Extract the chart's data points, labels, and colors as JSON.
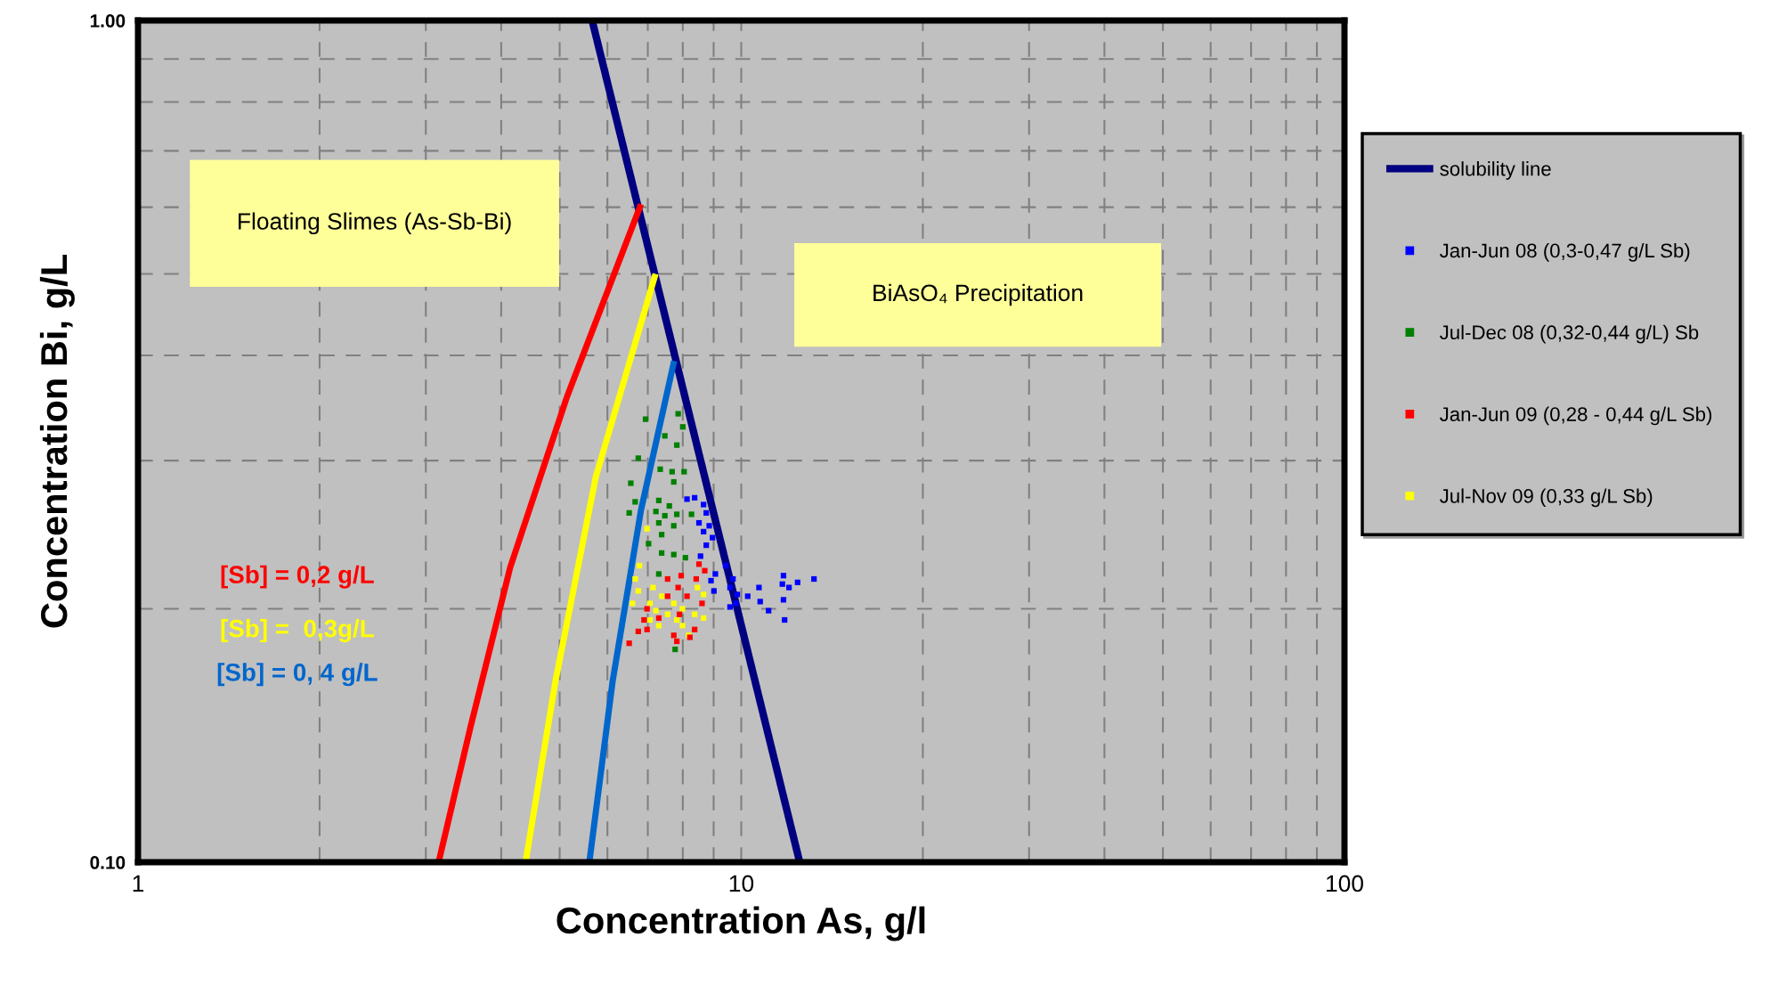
{
  "chart_data": {
    "type": "scatter",
    "xlabel": "Concentration As, g/l",
    "ylabel": "Concentration Bi, g/L",
    "log": "xy",
    "grid": true,
    "legend": "right",
    "marker": "square",
    "xlim": [
      1,
      100
    ],
    "ylim": [
      0.1,
      1.0
    ],
    "xticks": [
      1,
      {
        "value": 2,
        "label": null
      },
      {
        "value": 3,
        "label": null
      },
      {
        "value": 4,
        "label": null
      },
      {
        "value": 5,
        "label": null
      },
      {
        "value": 6,
        "label": null
      },
      {
        "value": 7,
        "label": null
      },
      {
        "value": 8,
        "label": null
      },
      {
        "value": 9,
        "label": null
      },
      10,
      {
        "value": 20,
        "label": null
      },
      {
        "value": 30,
        "label": null
      },
      {
        "value": 40,
        "label": null
      },
      {
        "value": 50,
        "label": null
      },
      {
        "value": 60,
        "label": null
      },
      {
        "value": 70,
        "label": null
      },
      {
        "value": 80,
        "label": null
      },
      {
        "value": 90,
        "label": null
      },
      100
    ],
    "yticks": [
      {
        "value": 0.1,
        "label": "0.10"
      },
      {
        "value": 0.2,
        "label": null
      },
      {
        "value": 0.3,
        "label": null
      },
      {
        "value": 0.4,
        "label": null
      },
      {
        "value": 0.5,
        "label": null
      },
      {
        "value": 0.6,
        "label": null
      },
      {
        "value": 0.7,
        "label": null
      },
      {
        "value": 0.8,
        "label": null
      },
      {
        "value": 0.9,
        "label": null
      },
      {
        "value": 1.0,
        "label": "1.00"
      }
    ],
    "annotations": [
      "Floating Slimes (As-Sb-Bi)",
      "BiAsO₄ Precipitation"
    ],
    "series": [
      {
        "name": "solubility line",
        "type": "line",
        "marker": "none",
        "color": "#000080",
        "x": [
          5.66,
          12.5
        ],
        "values": [
          1.0,
          0.1
        ]
      },
      {
        "name": "Jan-Jun 08 (0,3-0,47 g/L Sb)",
        "color": "#0000ff",
        "x": [
          8.13,
          8.37,
          8.66,
          8.75,
          8.51,
          8.85,
          8.66,
          8.96,
          8.75,
          8.56,
          9.42,
          9.06,
          9.69,
          8.91,
          9.01,
          9.58,
          9.85,
          10.25,
          10.7,
          10.75,
          11.1,
          11.75,
          11.7,
          12.0,
          12.4,
          13.2,
          11.75,
          11.8,
          9.58,
          9.8
        ],
        "values": [
          0.27,
          0.271,
          0.266,
          0.26,
          0.253,
          0.251,
          0.247,
          0.243,
          0.238,
          0.231,
          0.225,
          0.22,
          0.217,
          0.216,
          0.21,
          0.212,
          0.208,
          0.207,
          0.212,
          0.204,
          0.199,
          0.219,
          0.214,
          0.212,
          0.215,
          0.217,
          0.205,
          0.194,
          0.201,
          0.203
        ]
      },
      {
        "name": "Jul-Dec 08 (0,32-0,44 g/L) Sb",
        "color": "#008000",
        "x": [
          6.94,
          7.86,
          8.0,
          7.47,
          7.82,
          6.75,
          7.34,
          7.68,
          8.04,
          6.56,
          7.73,
          6.67,
          7.3,
          7.6,
          6.52,
          7.22,
          7.47,
          7.82,
          8.27,
          7.3,
          7.73,
          7.38,
          7.02,
          7.38,
          7.73,
          8.08,
          7.3,
          7.77
        ],
        "values": [
          0.336,
          0.341,
          0.329,
          0.321,
          0.313,
          0.302,
          0.293,
          0.291,
          0.291,
          0.282,
          0.283,
          0.268,
          0.269,
          0.265,
          0.26,
          0.261,
          0.258,
          0.259,
          0.259,
          0.253,
          0.251,
          0.245,
          0.239,
          0.233,
          0.232,
          0.23,
          0.22,
          0.179
        ]
      },
      {
        "name": "Jan-Jun 09 (0,28 - 0,44 g/L Sb)",
        "color": "#ff0000",
        "x": [
          8.51,
          8.7,
          7.55,
          7.95,
          8.42,
          7.86,
          8.13,
          7.55,
          8.61,
          6.98,
          7.3,
          6.9,
          7.9,
          6.75,
          6.98,
          7.73,
          8.37,
          6.52,
          7.82,
          8.22
        ],
        "values": [
          0.226,
          0.222,
          0.217,
          0.219,
          0.217,
          0.212,
          0.207,
          0.207,
          0.203,
          0.2,
          0.195,
          0.194,
          0.197,
          0.188,
          0.189,
          0.186,
          0.189,
          0.182,
          0.183,
          0.185
        ]
      },
      {
        "name": "Jul-Nov 09 (0,33 g/L Sb)",
        "color": "#ffff00",
        "x": [
          6.98,
          6.78,
          6.67,
          7.14,
          6.75,
          6.6,
          7.06,
          7.38,
          7.73,
          8.46,
          8.66,
          7.22,
          7.55,
          7.99,
          8.37,
          8.66,
          7.3,
          7.99,
          8.18,
          7.06,
          7.82
        ],
        "values": [
          0.249,
          0.225,
          0.217,
          0.212,
          0.21,
          0.203,
          0.203,
          0.207,
          0.203,
          0.212,
          0.208,
          0.199,
          0.197,
          0.2,
          0.197,
          0.195,
          0.191,
          0.191,
          0.186,
          0.194,
          0.194
        ]
      },
      {
        "name": "[Sb] = 0,2 g/L",
        "type": "line",
        "marker": "none",
        "color": "#ff0000",
        "x": [
          3.15,
          3.56,
          4.14,
          5.14,
          6.82
        ],
        "values": [
          0.1,
          0.145,
          0.224,
          0.357,
          0.605
        ]
      },
      {
        "name": "[Sb] =  0,3g/L",
        "type": "line",
        "marker": "none",
        "color": "#ffff00",
        "x": [
          4.39,
          4.92,
          5.74,
          7.21
        ],
        "values": [
          0.1,
          0.164,
          0.287,
          0.5
        ]
      },
      {
        "name": "[Sb] = 0, 4 g/L",
        "type": "line",
        "marker": "none",
        "color": "#0066cc",
        "x": [
          5.6,
          6.12,
          6.82,
          7.74
        ],
        "values": [
          0.1,
          0.164,
          0.262,
          0.394
        ]
      }
    ]
  }
}
